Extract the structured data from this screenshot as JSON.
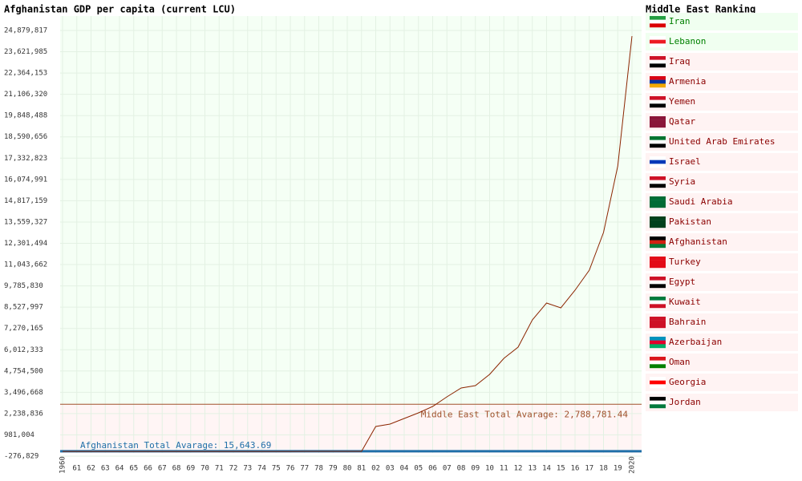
{
  "chart_data": {
    "type": "line",
    "title": "Afghanistan GDP per capita (current LCU)",
    "categories": [
      "1960",
      "61",
      "62",
      "63",
      "64",
      "65",
      "66",
      "67",
      "68",
      "69",
      "70",
      "71",
      "72",
      "73",
      "74",
      "75",
      "76",
      "77",
      "78",
      "79",
      "80",
      "81",
      "02",
      "03",
      "04",
      "05",
      "06",
      "07",
      "08",
      "09",
      "10",
      "11",
      "12",
      "13",
      "14",
      "15",
      "16",
      "17",
      "18",
      "19",
      "2020"
    ],
    "color": "#8b2500",
    "values": [
      1300,
      1400,
      1500,
      1650,
      1800,
      2000,
      2200,
      2400,
      2600,
      2800,
      3000,
      3200,
      3400,
      3700,
      4000,
      4400,
      4800,
      5300,
      5900,
      6600,
      7300,
      8000,
      1476000,
      1618000,
      1950000,
      2282000,
      2661000,
      3229000,
      3750000,
      3892000,
      4556000,
      5503000,
      6166000,
      7777000,
      8772000,
      8487000,
      9530000,
      10714000,
      12940000,
      16873000,
      24548000
    ],
    "ylim": [
      -276829,
      24879817
    ],
    "yticks": [
      {
        "value": -276829,
        "label": "-276,829"
      },
      {
        "value": 981004,
        "label": "981,004"
      },
      {
        "value": 2238836,
        "label": "2,238,836"
      },
      {
        "value": 3496668,
        "label": "3,496,668"
      },
      {
        "value": 4754500,
        "label": "4,754,500"
      },
      {
        "value": 6012333,
        "label": "6,012,333"
      },
      {
        "value": 7270165,
        "label": "7,270,165"
      },
      {
        "value": 8527997,
        "label": "8,527,997"
      },
      {
        "value": 9785830,
        "label": "9,785,830"
      },
      {
        "value": 11043662,
        "label": "11,043,662"
      },
      {
        "value": 12301494,
        "label": "12,301,494"
      },
      {
        "value": 13559327,
        "label": "13,559,327"
      },
      {
        "value": 14817159,
        "label": "14,817,159"
      },
      {
        "value": 16074991,
        "label": "16,074,991"
      },
      {
        "value": 17332823,
        "label": "17,332,823"
      },
      {
        "value": 18590656,
        "label": "18,590,656"
      },
      {
        "value": 19848488,
        "label": "19,848,488"
      },
      {
        "value": 21106320,
        "label": "21,106,320"
      },
      {
        "value": 22364153,
        "label": "22,364,153"
      },
      {
        "value": 23621985,
        "label": "23,621,985"
      },
      {
        "value": 24879817,
        "label": "24,879,817"
      }
    ],
    "grid": true,
    "reference_lines": [
      {
        "label": "Middle East Total Avarage: 2,788,781.44",
        "value": 2788781.44,
        "color": "#a0522d"
      },
      {
        "label": "Afghanistan Total Avarage: 15,643.69",
        "value": 15643.69,
        "color": "#1f6fa8"
      }
    ]
  },
  "ranking": {
    "title": "Middle East Ranking",
    "items": [
      {
        "name": "Iran",
        "color": "#008000"
      },
      {
        "name": "Lebanon",
        "color": "#008000"
      },
      {
        "name": "Iraq",
        "color": "#8b0000"
      },
      {
        "name": "Armenia",
        "color": "#8b0000"
      },
      {
        "name": "Yemen",
        "color": "#8b0000"
      },
      {
        "name": "Qatar",
        "color": "#8b0000"
      },
      {
        "name": "United Arab Emirates",
        "color": "#8b0000"
      },
      {
        "name": "Israel",
        "color": "#8b0000"
      },
      {
        "name": "Syria",
        "color": "#8b0000"
      },
      {
        "name": "Saudi Arabia",
        "color": "#8b0000"
      },
      {
        "name": "Pakistan",
        "color": "#8b0000"
      },
      {
        "name": "Afghanistan",
        "color": "#8b0000"
      },
      {
        "name": "Turkey",
        "color": "#8b0000"
      },
      {
        "name": "Egypt",
        "color": "#8b0000"
      },
      {
        "name": "Kuwait",
        "color": "#8b0000"
      },
      {
        "name": "Bahrain",
        "color": "#8b0000"
      },
      {
        "name": "Azerbaijan",
        "color": "#8b0000"
      },
      {
        "name": "Oman",
        "color": "#8b0000"
      },
      {
        "name": "Georgia",
        "color": "#8b0000"
      },
      {
        "name": "Jordan",
        "color": "#8b0000"
      }
    ]
  }
}
